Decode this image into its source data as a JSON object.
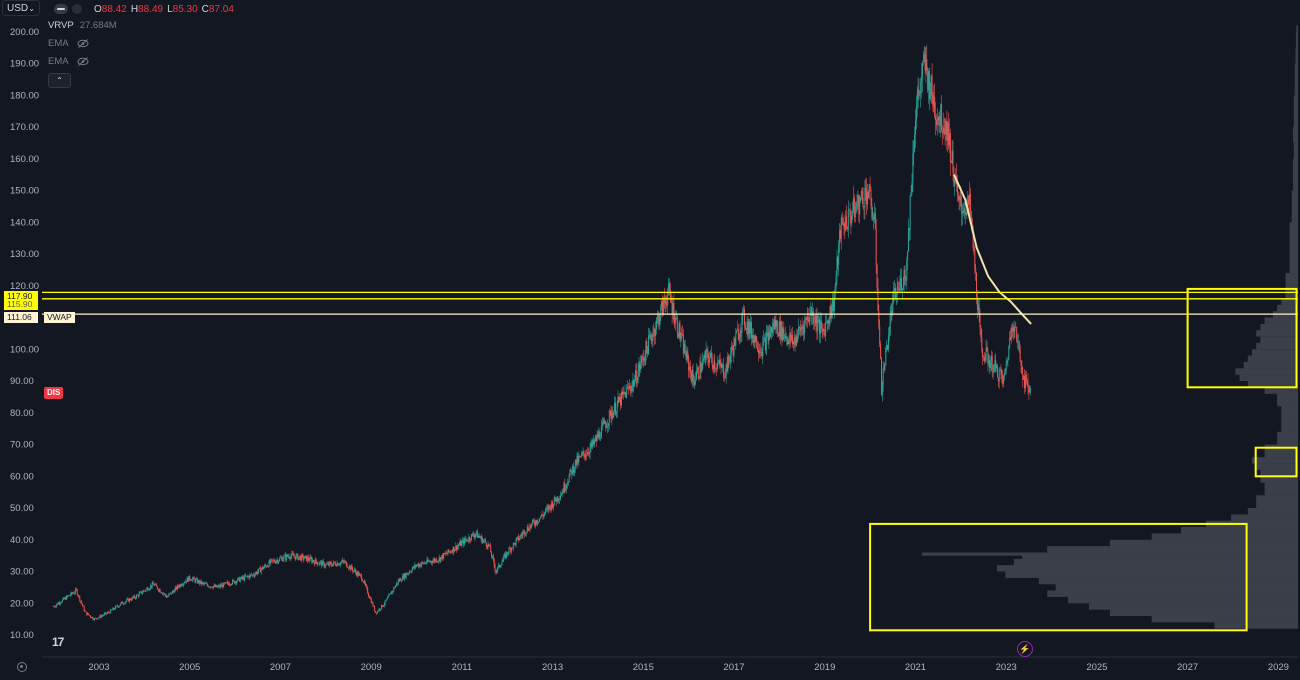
{
  "header": {
    "currency": "USD",
    "ohlc": [
      {
        "key": "O",
        "value": "88.42"
      },
      {
        "key": "H",
        "value": "88.49"
      },
      {
        "key": "L",
        "value": "85.30"
      },
      {
        "key": "C",
        "value": "87.04"
      }
    ]
  },
  "indicators": {
    "vrvp": {
      "name": "VRVP",
      "value": "27.684M"
    },
    "ema1": {
      "name": "EMA"
    },
    "ema2": {
      "name": "EMA"
    }
  },
  "ticker_badge": "DIS",
  "price_tags": {
    "level1": "117.90",
    "level2": "115.90",
    "vwap_value": "111.06",
    "vwap_label": "VWAP"
  },
  "logo_text": "17",
  "colors": {
    "background": "#131722",
    "up": "#26a69a",
    "down": "#ef5350",
    "highlight": "#ffff00",
    "vwap": "#fff3c4",
    "profile": "#5d606b",
    "axis_text": "#b2b5be"
  },
  "chart_data": {
    "type": "candlestick",
    "symbol": "DIS",
    "ylim": [
      7,
      205
    ],
    "y_ticks": [
      10,
      20,
      30,
      40,
      50,
      60,
      70,
      80,
      90,
      100,
      110,
      120,
      130,
      140,
      150,
      160,
      170,
      180,
      190,
      200
    ],
    "y_tick_labels": [
      "10.00",
      "20.00",
      "30.00",
      "40.00",
      "50.00",
      "60.00",
      "70.00",
      "80.00",
      "90.00",
      "100.00",
      "110.00",
      "120.00",
      "130.00",
      "140.00",
      "150.00",
      "160.00",
      "170.00",
      "180.00",
      "190.00",
      "200.00"
    ],
    "x_range": [
      2002,
      2029.7
    ],
    "x_ticks": [
      2003,
      2005,
      2007,
      2009,
      2011,
      2013,
      2015,
      2017,
      2019,
      2021,
      2023,
      2025,
      2027,
      2029
    ],
    "x_tick_labels": [
      "2003",
      "2005",
      "2007",
      "2009",
      "2011",
      "2013",
      "2015",
      "2017",
      "2019",
      "2021",
      "2023",
      "2025",
      "2027",
      "2029"
    ],
    "price_path": [
      [
        2002.0,
        19
      ],
      [
        2002.3,
        22
      ],
      [
        2002.5,
        24
      ],
      [
        2002.7,
        17
      ],
      [
        2002.9,
        15
      ],
      [
        2003.2,
        17
      ],
      [
        2003.5,
        20
      ],
      [
        2003.8,
        22
      ],
      [
        2004.2,
        26
      ],
      [
        2004.5,
        22
      ],
      [
        2004.8,
        26
      ],
      [
        2005.0,
        28
      ],
      [
        2005.3,
        26
      ],
      [
        2005.6,
        25
      ],
      [
        2006.0,
        27
      ],
      [
        2006.4,
        29
      ],
      [
        2006.8,
        33
      ],
      [
        2007.2,
        35
      ],
      [
        2007.6,
        34
      ],
      [
        2008.0,
        32
      ],
      [
        2008.4,
        33
      ],
      [
        2008.8,
        28
      ],
      [
        2009.1,
        17
      ],
      [
        2009.3,
        20
      ],
      [
        2009.6,
        27
      ],
      [
        2010.0,
        32
      ],
      [
        2010.5,
        34
      ],
      [
        2010.9,
        38
      ],
      [
        2011.3,
        42
      ],
      [
        2011.6,
        38
      ],
      [
        2011.75,
        30
      ],
      [
        2012.0,
        36
      ],
      [
        2012.4,
        43
      ],
      [
        2012.8,
        48
      ],
      [
        2013.2,
        55
      ],
      [
        2013.5,
        64
      ],
      [
        2013.9,
        70
      ],
      [
        2014.3,
        80
      ],
      [
        2014.8,
        90
      ],
      [
        2015.2,
        105
      ],
      [
        2015.55,
        118
      ],
      [
        2015.8,
        105
      ],
      [
        2016.1,
        90
      ],
      [
        2016.4,
        98
      ],
      [
        2016.8,
        93
      ],
      [
        2017.2,
        110
      ],
      [
        2017.6,
        100
      ],
      [
        2017.9,
        108
      ],
      [
        2018.3,
        102
      ],
      [
        2018.7,
        112
      ],
      [
        2018.95,
        105
      ],
      [
        2019.2,
        115
      ],
      [
        2019.35,
        138
      ],
      [
        2019.7,
        145
      ],
      [
        2019.95,
        150
      ],
      [
        2020.1,
        140
      ],
      [
        2020.25,
        88
      ],
      [
        2020.5,
        115
      ],
      [
        2020.8,
        125
      ],
      [
        2021.0,
        175
      ],
      [
        2021.2,
        190
      ],
      [
        2021.45,
        175
      ],
      [
        2021.7,
        170
      ],
      [
        2021.95,
        145
      ],
      [
        2022.2,
        145
      ],
      [
        2022.45,
        100
      ],
      [
        2022.7,
        95
      ],
      [
        2022.95,
        90
      ],
      [
        2023.15,
        110
      ],
      [
        2023.4,
        90
      ],
      [
        2023.55,
        87
      ]
    ],
    "ema_line": [
      [
        2021.85,
        155
      ],
      [
        2022.1,
        147
      ],
      [
        2022.35,
        132
      ],
      [
        2022.6,
        123
      ],
      [
        2022.85,
        118
      ],
      [
        2023.1,
        115
      ],
      [
        2023.35,
        111
      ],
      [
        2023.55,
        108
      ]
    ],
    "horizontal_levels": [
      {
        "label": "117.90",
        "value": 117.9,
        "color": "#ffff00"
      },
      {
        "label": "115.90",
        "value": 115.9,
        "color": "#ffff00"
      },
      {
        "label": "111.06",
        "value": 111.06,
        "color": "#fff3c4"
      }
    ],
    "volume_profile": [
      [
        12,
        0.2
      ],
      [
        14,
        0.35
      ],
      [
        16,
        0.45
      ],
      [
        18,
        0.5
      ],
      [
        20,
        0.55
      ],
      [
        22,
        0.6
      ],
      [
        24,
        0.58
      ],
      [
        26,
        0.62
      ],
      [
        28,
        0.7
      ],
      [
        30,
        0.72
      ],
      [
        32,
        0.68
      ],
      [
        34,
        0.66
      ],
      [
        35,
        0.9
      ],
      [
        36,
        0.6
      ],
      [
        38,
        0.45
      ],
      [
        40,
        0.35
      ],
      [
        42,
        0.28
      ],
      [
        44,
        0.22
      ],
      [
        46,
        0.16
      ],
      [
        48,
        0.12
      ],
      [
        50,
        0.1
      ],
      [
        54,
        0.08
      ],
      [
        58,
        0.09
      ],
      [
        62,
        0.1
      ],
      [
        64,
        0.11
      ],
      [
        66,
        0.08
      ],
      [
        70,
        0.05
      ],
      [
        74,
        0.04
      ],
      [
        78,
        0.04
      ],
      [
        82,
        0.05
      ],
      [
        86,
        0.08
      ],
      [
        88,
        0.12
      ],
      [
        90,
        0.14
      ],
      [
        92,
        0.15
      ],
      [
        94,
        0.13
      ],
      [
        96,
        0.12
      ],
      [
        98,
        0.11
      ],
      [
        100,
        0.1
      ],
      [
        102,
        0.09
      ],
      [
        104,
        0.1
      ],
      [
        106,
        0.09
      ],
      [
        108,
        0.08
      ],
      [
        110,
        0.06
      ],
      [
        112,
        0.05
      ],
      [
        114,
        0.04
      ],
      [
        116,
        0.03
      ],
      [
        120,
        0.03
      ],
      [
        124,
        0.02
      ],
      [
        128,
        0.02
      ],
      [
        132,
        0.02
      ],
      [
        136,
        0.02
      ],
      [
        140,
        0.015
      ],
      [
        145,
        0.015
      ],
      [
        150,
        0.012
      ],
      [
        155,
        0.012
      ],
      [
        160,
        0.01
      ],
      [
        165,
        0.012
      ],
      [
        170,
        0.01
      ],
      [
        175,
        0.01
      ],
      [
        180,
        0.008
      ],
      [
        185,
        0.008
      ],
      [
        190,
        0.006
      ],
      [
        195,
        0.005
      ],
      [
        200,
        0.004
      ]
    ],
    "annotation_boxes": [
      {
        "y_range": [
          88,
          119
        ],
        "x_range": [
          2027.0,
          2029.4
        ],
        "color": "#ffff00"
      },
      {
        "y_range": [
          60,
          69
        ],
        "x_range": [
          2028.5,
          2029.4
        ],
        "color": "#ffff00"
      },
      {
        "y_range": [
          11.5,
          45
        ],
        "x_range": [
          2020.0,
          2028.3
        ],
        "color": "#ffff00"
      }
    ]
  }
}
